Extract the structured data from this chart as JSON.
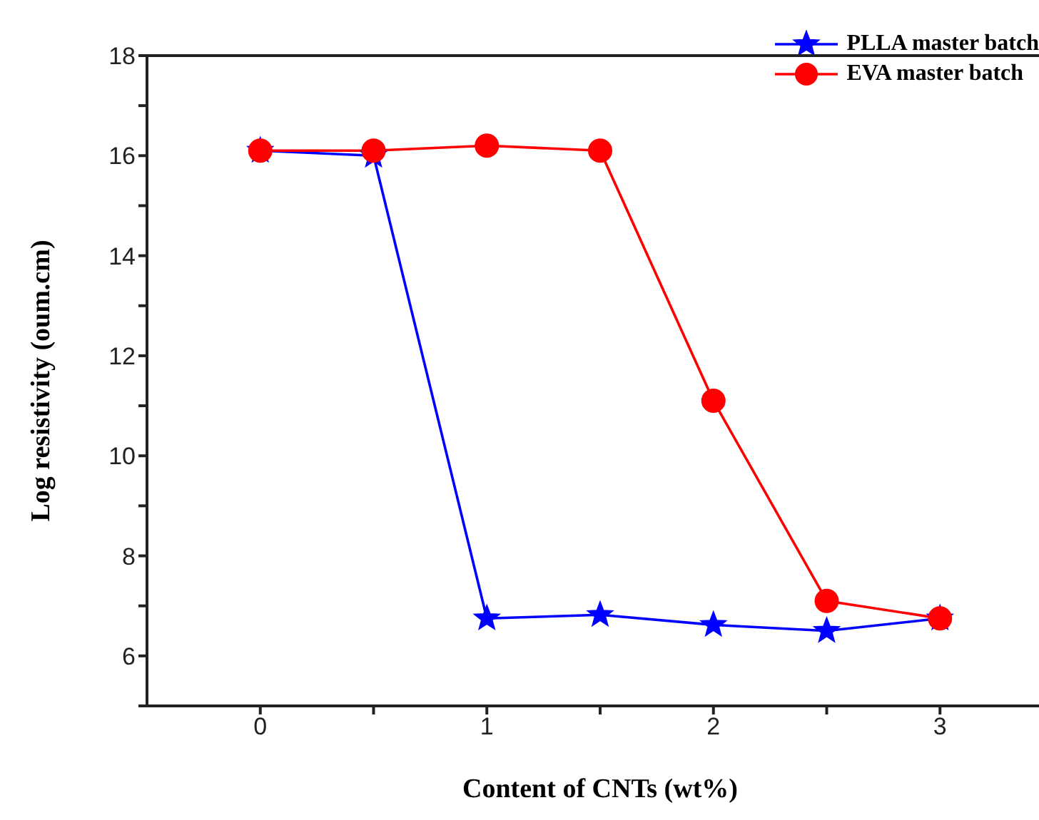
{
  "chart_data": {
    "type": "line",
    "xlabel": "Content of CNTs (wt%)",
    "ylabel": "Log resistivity (oum.cm)",
    "x": [
      0,
      0.5,
      1,
      1.5,
      2,
      2.5,
      3
    ],
    "series": [
      {
        "name": "PLLA master batch",
        "color": "#0000ff",
        "marker": "star",
        "values": [
          16.1,
          16.0,
          6.75,
          6.82,
          6.62,
          6.5,
          6.75
        ]
      },
      {
        "name": "EVA master batch",
        "color": "#ff0000",
        "marker": "circle",
        "values": [
          16.1,
          16.1,
          16.2,
          16.1,
          11.1,
          7.1,
          6.75
        ]
      }
    ],
    "xlim": [
      -0.5,
      3.5
    ],
    "xticks": [
      0,
      {
        "value": 0.5,
        "label": null
      },
      1,
      {
        "value": 1.5,
        "label": null
      },
      2,
      {
        "value": 2.5,
        "label": null
      },
      3
    ],
    "ylim": [
      5,
      18
    ],
    "yticks": [
      {
        "value": 5,
        "label": null
      },
      6,
      {
        "value": 7,
        "label": null
      },
      8,
      {
        "value": 9,
        "label": null
      },
      10,
      {
        "value": 11,
        "label": null
      },
      12,
      {
        "value": 13,
        "label": null
      },
      14,
      {
        "value": 15,
        "label": null
      },
      16,
      {
        "value": 17,
        "label": null
      },
      18
    ],
    "legend": "top right",
    "grid": false,
    "line_style": "solid"
  }
}
